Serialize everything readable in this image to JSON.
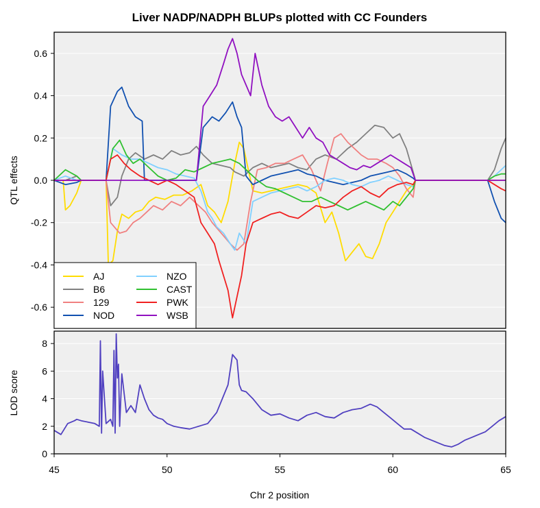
{
  "chart_data": [
    {
      "type": "line",
      "title": "Liver NADP/NADPH BLUPs plotted with CC Founders",
      "ylabel": "QTL effects",
      "xlabel": "",
      "xlim": [
        45,
        65
      ],
      "ylim": [
        -0.7,
        0.7
      ],
      "yticks": [
        "0.6",
        "0.4",
        "0.2",
        "0.0",
        "-0.2",
        "-0.4",
        "-0.6"
      ],
      "ytick_values": [
        0.6,
        0.4,
        0.2,
        0.0,
        -0.2,
        -0.4,
        -0.6
      ],
      "grid": true,
      "legend_position": "bottom-left",
      "series": [
        {
          "name": "AJ",
          "color": "#FFDC00",
          "x": [
            45,
            45.4,
            45.5,
            45.7,
            45.9,
            46.0,
            46.1,
            46.2,
            47.3,
            47.4,
            47.6,
            47.8,
            48.0,
            48.3,
            48.6,
            48.9,
            49.2,
            49.5,
            49.9,
            50.3,
            50.7,
            51.1,
            51.5,
            51.8,
            52.1,
            52.4,
            52.7,
            53.0,
            53.2,
            53.4,
            53.6,
            53.8,
            54.2,
            54.6,
            55.0,
            55.4,
            55.8,
            56.2,
            56.6,
            57.0,
            57.3,
            57.6,
            57.9,
            58.2,
            58.5,
            58.8,
            59.1,
            59.4,
            59.7,
            60.0,
            60.3,
            60.6,
            60.9,
            61.0,
            61.2,
            65
          ],
          "values": [
            0,
            0,
            -0.14,
            -0.12,
            -0.08,
            -0.06,
            -0.03,
            0,
            0,
            -0.4,
            -0.38,
            -0.24,
            -0.16,
            -0.18,
            -0.15,
            -0.14,
            -0.1,
            -0.08,
            -0.09,
            -0.07,
            -0.07,
            -0.05,
            -0.02,
            -0.12,
            -0.15,
            -0.2,
            -0.1,
            0.08,
            0.18,
            0.15,
            0.05,
            -0.05,
            -0.06,
            -0.05,
            -0.04,
            -0.03,
            -0.02,
            -0.03,
            -0.06,
            -0.2,
            -0.15,
            -0.25,
            -0.38,
            -0.34,
            -0.3,
            -0.36,
            -0.37,
            -0.3,
            -0.2,
            -0.15,
            -0.1,
            -0.05,
            -0.02,
            0,
            0,
            0
          ]
        },
        {
          "name": "B6",
          "color": "#808080",
          "x": [
            45,
            45.5,
            46.0,
            46.2,
            47.3,
            47.5,
            47.8,
            48.0,
            48.3,
            48.6,
            49.0,
            49.4,
            49.8,
            50.2,
            50.6,
            51.0,
            51.3,
            51.6,
            52.0,
            52.4,
            52.8,
            53.0,
            53.4,
            53.8,
            54.2,
            54.6,
            55.0,
            55.4,
            55.8,
            56.2,
            56.6,
            57.0,
            57.5,
            58.0,
            58.4,
            58.8,
            59.2,
            59.6,
            60.0,
            60.3,
            60.6,
            60.9,
            61.0,
            61.2,
            64.2,
            64.5,
            64.8,
            65
          ],
          "values": [
            0,
            0,
            0.02,
            0,
            0,
            -0.12,
            -0.08,
            0.02,
            0.1,
            0.13,
            0.1,
            0.12,
            0.1,
            0.14,
            0.12,
            0.13,
            0.16,
            0.12,
            0.08,
            0.07,
            0.06,
            0.04,
            0.02,
            0.06,
            0.08,
            0.06,
            0.07,
            0.08,
            0.06,
            0.05,
            0.1,
            0.12,
            0.1,
            0.15,
            0.18,
            0.22,
            0.26,
            0.25,
            0.2,
            0.22,
            0.15,
            0.04,
            0,
            0,
            0,
            0.05,
            0.15,
            0.2
          ]
        },
        {
          "name": "129",
          "color": "#F08080",
          "x": [
            45,
            47.3,
            47.5,
            47.9,
            48.2,
            48.5,
            48.8,
            49.1,
            49.4,
            49.8,
            50.2,
            50.6,
            51.0,
            51.4,
            51.7,
            52.0,
            52.4,
            52.8,
            53.1,
            53.4,
            53.7,
            54.0,
            54.4,
            54.8,
            55.2,
            55.6,
            56.0,
            56.4,
            56.8,
            57.1,
            57.4,
            57.7,
            58.0,
            58.3,
            58.6,
            58.9,
            59.3,
            59.7,
            60.0,
            60.3,
            60.6,
            60.9,
            61.0,
            61.2,
            65
          ],
          "values": [
            0,
            0,
            -0.2,
            -0.25,
            -0.24,
            -0.2,
            -0.18,
            -0.15,
            -0.12,
            -0.14,
            -0.1,
            -0.12,
            -0.08,
            -0.12,
            -0.15,
            -0.2,
            -0.25,
            -0.3,
            -0.33,
            -0.3,
            -0.1,
            0.05,
            0.06,
            0.08,
            0.08,
            0.1,
            0.12,
            0.05,
            -0.05,
            0.08,
            0.2,
            0.22,
            0.18,
            0.15,
            0.12,
            0.1,
            0.1,
            0.08,
            0.06,
            0.02,
            -0.04,
            -0.08,
            0,
            0,
            0
          ]
        },
        {
          "name": "NOD",
          "color": "#1050B0",
          "x": [
            45,
            45.5,
            46.0,
            46.2,
            47.3,
            47.5,
            47.8,
            48.0,
            48.3,
            48.6,
            48.9,
            49.0,
            51.3,
            51.6,
            52.0,
            52.3,
            52.6,
            52.9,
            53.1,
            53.3,
            53.5,
            53.8,
            54.2,
            54.6,
            55.0,
            55.4,
            55.8,
            56.2,
            56.6,
            57.0,
            57.4,
            57.8,
            58.2,
            58.6,
            59.0,
            59.4,
            59.8,
            60.2,
            60.6,
            60.9,
            61.0,
            61.2,
            64.2,
            64.5,
            64.8,
            65
          ],
          "values": [
            0,
            -0.02,
            -0.01,
            0,
            0,
            0.35,
            0.42,
            0.44,
            0.35,
            0.3,
            0.28,
            0,
            0,
            0.25,
            0.3,
            0.28,
            0.32,
            0.37,
            0.3,
            0.25,
            0.02,
            -0.02,
            0,
            0.02,
            0.03,
            0.04,
            0.05,
            0.03,
            0.02,
            0.0,
            -0.01,
            -0.02,
            -0.01,
            0,
            0.02,
            0.03,
            0.04,
            0.05,
            0.03,
            0.01,
            0,
            0,
            0,
            -0.1,
            -0.18,
            -0.2
          ]
        },
        {
          "name": "NZO",
          "color": "#80D0FF",
          "x": [
            45,
            45.5,
            46.0,
            46.2,
            47.3,
            47.6,
            48.0,
            48.4,
            48.8,
            49.2,
            49.6,
            50.0,
            50.4,
            50.8,
            51.2,
            51.5,
            51.8,
            52.0,
            52.2,
            52.5,
            52.8,
            53.0,
            53.2,
            53.5,
            53.8,
            54.2,
            54.6,
            55.0,
            55.4,
            55.8,
            56.2,
            56.6,
            57.0,
            57.4,
            57.8,
            58.2,
            58.6,
            59.0,
            59.4,
            59.8,
            60.2,
            60.6,
            60.9,
            61.0,
            61.2,
            64.2,
            64.5,
            64.8,
            65
          ],
          "values": [
            0,
            0.02,
            0,
            0,
            0,
            0.15,
            0.12,
            0.1,
            0.1,
            0.08,
            0.06,
            0.05,
            0.03,
            0.02,
            0.01,
            -0.05,
            -0.15,
            -0.18,
            -0.22,
            -0.25,
            -0.3,
            -0.33,
            -0.25,
            -0.3,
            -0.1,
            -0.08,
            -0.06,
            -0.05,
            -0.04,
            -0.03,
            -0.05,
            -0.03,
            0.0,
            0.01,
            0.0,
            -0.02,
            -0.03,
            -0.01,
            0.0,
            0.02,
            0.0,
            -0.02,
            -0.03,
            0,
            0,
            0,
            0.02,
            0.05,
            0.07
          ]
        },
        {
          "name": "CAST",
          "color": "#30C030",
          "x": [
            45,
            45.5,
            46.0,
            46.2,
            47.3,
            47.6,
            47.9,
            48.2,
            48.5,
            48.8,
            49.2,
            49.6,
            50.0,
            50.4,
            50.8,
            51.2,
            51.6,
            52.0,
            52.4,
            52.8,
            53.2,
            53.6,
            54.0,
            54.4,
            54.8,
            55.2,
            55.6,
            56.0,
            56.4,
            56.8,
            57.2,
            57.6,
            58.0,
            58.4,
            58.8,
            59.2,
            59.6,
            60.0,
            60.3,
            60.6,
            60.9,
            61.0,
            61.2,
            64.2,
            64.5,
            64.8,
            65
          ],
          "values": [
            0,
            0.05,
            0.02,
            0,
            0,
            0.15,
            0.19,
            0.12,
            0.08,
            0.1,
            0.06,
            0.02,
            0.0,
            0.01,
            0.05,
            0.04,
            0.06,
            0.08,
            0.09,
            0.1,
            0.08,
            0.04,
            0.0,
            -0.03,
            -0.04,
            -0.06,
            -0.08,
            -0.1,
            -0.1,
            -0.08,
            -0.1,
            -0.12,
            -0.14,
            -0.12,
            -0.1,
            -0.12,
            -0.14,
            -0.1,
            -0.12,
            -0.08,
            -0.04,
            0,
            0,
            0,
            0.02,
            0.03,
            0.03
          ]
        },
        {
          "name": "PWK",
          "color": "#F02020",
          "x": [
            45,
            47.3,
            47.5,
            47.8,
            48.1,
            48.4,
            48.8,
            49.2,
            49.6,
            50.0,
            50.4,
            50.8,
            51.2,
            51.5,
            51.8,
            52.1,
            52.3,
            52.5,
            52.7,
            52.9,
            53.1,
            53.3,
            53.5,
            53.8,
            54.2,
            54.6,
            55.0,
            55.4,
            55.8,
            56.2,
            56.6,
            57.0,
            57.4,
            57.8,
            58.2,
            58.6,
            59.0,
            59.4,
            59.8,
            60.2,
            60.6,
            60.9,
            61.0,
            61.2,
            64.2,
            64.5,
            64.8,
            65
          ],
          "values": [
            0,
            0,
            0.1,
            0.12,
            0.08,
            0.05,
            0.02,
            0.0,
            -0.02,
            0.0,
            -0.02,
            -0.05,
            -0.08,
            -0.2,
            -0.25,
            -0.3,
            -0.38,
            -0.45,
            -0.52,
            -0.65,
            -0.55,
            -0.45,
            -0.3,
            -0.2,
            -0.18,
            -0.16,
            -0.15,
            -0.17,
            -0.18,
            -0.15,
            -0.12,
            -0.13,
            -0.12,
            -0.08,
            -0.05,
            -0.03,
            -0.06,
            -0.08,
            -0.04,
            -0.02,
            -0.01,
            -0.02,
            0,
            0,
            0,
            -0.02,
            -0.04,
            -0.05
          ]
        },
        {
          "name": "WSB",
          "color": "#9010C0",
          "x": [
            45,
            51.3,
            51.6,
            51.9,
            52.2,
            52.5,
            52.7,
            52.9,
            53.1,
            53.3,
            53.5,
            53.7,
            53.9,
            54.2,
            54.5,
            54.8,
            55.1,
            55.4,
            55.7,
            56.0,
            56.3,
            56.6,
            56.9,
            57.2,
            57.5,
            57.8,
            58.1,
            58.4,
            58.7,
            59.0,
            59.3,
            59.6,
            59.9,
            60.2,
            60.5,
            60.8,
            61.0,
            65
          ],
          "values": [
            0,
            0,
            0.35,
            0.4,
            0.45,
            0.55,
            0.62,
            0.67,
            0.6,
            0.5,
            0.45,
            0.4,
            0.6,
            0.45,
            0.35,
            0.3,
            0.28,
            0.3,
            0.25,
            0.2,
            0.25,
            0.2,
            0.18,
            0.12,
            0.1,
            0.08,
            0.06,
            0.05,
            0.07,
            0.06,
            0.08,
            0.1,
            0.12,
            0.1,
            0.08,
            0.06,
            0,
            0
          ]
        }
      ],
      "legend": [
        {
          "label": "AJ",
          "color": "#FFDC00"
        },
        {
          "label": "B6",
          "color": "#808080"
        },
        {
          "label": "129",
          "color": "#F08080"
        },
        {
          "label": "NOD",
          "color": "#1050B0"
        },
        {
          "label": "NZO",
          "color": "#80D0FF"
        },
        {
          "label": "CAST",
          "color": "#30C030"
        },
        {
          "label": "PWK",
          "color": "#F02020"
        },
        {
          "label": "WSB",
          "color": "#9010C0"
        }
      ]
    },
    {
      "type": "line",
      "title": "",
      "xlabel": "Chr 2 position",
      "ylabel": "LOD score",
      "xlim": [
        45,
        65
      ],
      "ylim": [
        0,
        8.9
      ],
      "xticks": [
        "45",
        "50",
        "55",
        "60",
        "65"
      ],
      "xtick_values": [
        45,
        50,
        55,
        60,
        65
      ],
      "yticks": [
        "8",
        "6",
        "4",
        "2",
        "0"
      ],
      "ytick_values": [
        8,
        6,
        4,
        2,
        0
      ],
      "grid": true,
      "series": [
        {
          "name": "",
          "color": "#5040C0",
          "x": [
            45.0,
            45.3,
            45.6,
            45.9,
            46.0,
            46.2,
            46.5,
            46.8,
            47.0,
            47.05,
            47.1,
            47.15,
            47.3,
            47.5,
            47.6,
            47.65,
            47.7,
            47.75,
            47.8,
            47.85,
            47.9,
            48.0,
            48.2,
            48.4,
            48.6,
            48.8,
            49.0,
            49.2,
            49.4,
            49.6,
            49.8,
            50.0,
            50.3,
            50.6,
            51.0,
            51.4,
            51.8,
            52.2,
            52.5,
            52.7,
            52.9,
            53.1,
            53.2,
            53.3,
            53.5,
            53.8,
            54.2,
            54.6,
            55.0,
            55.4,
            55.8,
            56.2,
            56.6,
            57.0,
            57.4,
            57.8,
            58.2,
            58.6,
            59.0,
            59.3,
            59.6,
            59.9,
            60.2,
            60.5,
            60.8,
            61.1,
            61.4,
            61.7,
            62.0,
            62.3,
            62.6,
            62.9,
            63.2,
            63.5,
            63.8,
            64.1,
            64.4,
            64.7,
            65.0
          ],
          "values": [
            1.7,
            1.4,
            2.2,
            2.4,
            2.5,
            2.4,
            2.3,
            2.2,
            2.0,
            8.2,
            1.5,
            6.0,
            2.2,
            2.5,
            2.0,
            7.5,
            1.5,
            8.7,
            5.5,
            6.5,
            2.0,
            5.8,
            3.0,
            3.5,
            3.0,
            5.0,
            4.0,
            3.2,
            2.8,
            2.6,
            2.5,
            2.2,
            2.0,
            1.9,
            1.8,
            2.0,
            2.2,
            3.0,
            4.2,
            5.0,
            7.2,
            6.8,
            5.0,
            4.6,
            4.5,
            4.0,
            3.2,
            2.8,
            2.9,
            2.6,
            2.4,
            2.8,
            3.0,
            2.7,
            2.6,
            3.0,
            3.2,
            3.3,
            3.6,
            3.4,
            3.0,
            2.6,
            2.2,
            1.8,
            1.8,
            1.5,
            1.2,
            1.0,
            0.8,
            0.6,
            0.5,
            0.7,
            1.0,
            1.2,
            1.4,
            1.6,
            2.0,
            2.4,
            2.7
          ]
        }
      ]
    }
  ]
}
